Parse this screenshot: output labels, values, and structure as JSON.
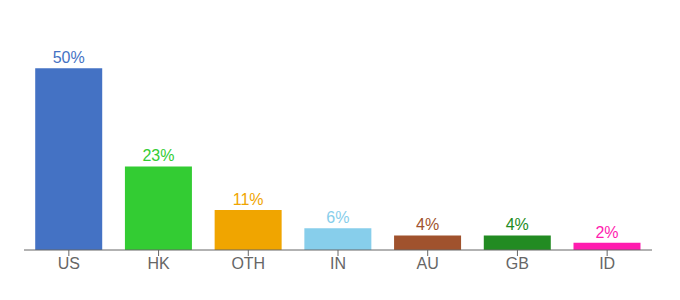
{
  "chart_data": {
    "type": "bar",
    "categories": [
      "US",
      "HK",
      "OTH",
      "IN",
      "AU",
      "GB",
      "ID"
    ],
    "values": [
      50,
      23,
      11,
      6,
      4,
      4,
      2
    ],
    "value_labels": [
      "50%",
      "23%",
      "11%",
      "6%",
      "4%",
      "4%",
      "2%"
    ],
    "data_labels": true,
    "colors": [
      "#4472c4",
      "#33cc33",
      "#f0a500",
      "#87CEEB",
      "#a0522d",
      "#228B22",
      "#ff1caf"
    ],
    "ylim": [
      0,
      60
    ],
    "grid": false,
    "tick_labels": "x"
  }
}
